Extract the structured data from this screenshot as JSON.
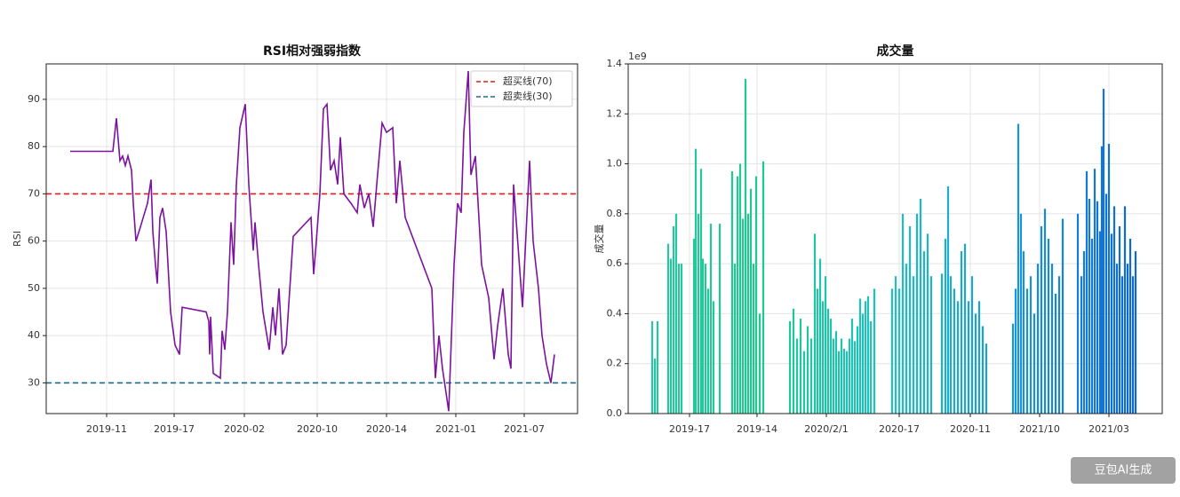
{
  "chart_data": [
    {
      "type": "line",
      "title": "RSI相对强弱指数",
      "ylabel": "RSI",
      "color": "#7b12a0",
      "x": [
        27,
        75,
        79,
        83,
        86,
        89,
        92,
        96,
        98,
        101,
        106,
        114,
        118,
        120,
        123,
        125,
        128,
        131,
        135,
        140,
        145,
        150,
        153,
        180,
        183,
        184,
        185,
        188,
        196,
        198,
        201,
        204,
        208,
        211,
        214,
        218,
        224,
        228,
        233,
        235,
        239,
        244,
        251,
        255,
        258,
        262,
        266,
        270,
        278,
        298,
        301,
        304,
        308,
        312,
        316,
        320,
        324,
        328,
        331,
        335,
        343,
        350,
        353,
        358,
        363,
        368,
        372,
        378,
        383,
        390,
        394,
        398,
        404,
        434,
        438,
        442,
        446,
        453,
        459,
        463,
        467,
        470,
        475,
        478,
        483,
        490,
        498,
        504,
        508,
        514,
        520,
        523,
        526,
        536,
        544,
        548,
        554,
        558,
        563,
        568,
        572
      ],
      "values": [
        79,
        79,
        86,
        77,
        78,
        76,
        78,
        75,
        68,
        60,
        63,
        68,
        73,
        62,
        55,
        51,
        65,
        67,
        62,
        45,
        38,
        36,
        46,
        45,
        43,
        36,
        44,
        32,
        31,
        41,
        37,
        45,
        64,
        55,
        72,
        84,
        89,
        72,
        58,
        64,
        55,
        45,
        37,
        46,
        40,
        50,
        36,
        38,
        61,
        65,
        53,
        60,
        70,
        88,
        89,
        75,
        77,
        72,
        82,
        70,
        68,
        66,
        72,
        67,
        70,
        63,
        72,
        85,
        83,
        84,
        68,
        77,
        65,
        50,
        31,
        40,
        33,
        24,
        55,
        68,
        66,
        83,
        96,
        74,
        78,
        55,
        48,
        35,
        42,
        50,
        36,
        33,
        72,
        46,
        77,
        60,
        50,
        40,
        34,
        30,
        36
      ],
      "xlim": [
        0,
        598
      ],
      "ylim": [
        23.5,
        97.5
      ],
      "xticks": [
        {
          "value": 68,
          "label": "2019-11"
        },
        {
          "value": 144,
          "label": "2019-17"
        },
        {
          "value": 223,
          "label": "2020-02"
        },
        {
          "value": 305,
          "label": "2020-10"
        },
        {
          "value": 383,
          "label": "2020-14"
        },
        {
          "value": 461,
          "label": "2021-01"
        },
        {
          "value": 538,
          "label": "2021-07"
        }
      ],
      "yticks": [
        30,
        40,
        50,
        60,
        70,
        80,
        90
      ],
      "grid": true,
      "legend": "upper right",
      "hlines": [
        {
          "name": "超买线(70)",
          "value": 70,
          "color": "#e01e1e"
        },
        {
          "name": "超卖线(30)",
          "value": 30,
          "color": "#1a6a8a"
        }
      ]
    },
    {
      "type": "bar",
      "title": "成交量",
      "ylabel": "成交量",
      "offset_text": "1e9",
      "cmap": [
        "#2bc4a8",
        "#20c98e",
        "#1ec0c4",
        "#1a8fe0",
        "#0a5ed2"
      ],
      "x": [
        27,
        30,
        33,
        45,
        48,
        51,
        54,
        57,
        60,
        74,
        76,
        79,
        82,
        84,
        87,
        90,
        93,
        96,
        103,
        117,
        120,
        123,
        126,
        129,
        132,
        135,
        138,
        141,
        144,
        148,
        152,
        182,
        186,
        190,
        194,
        198,
        202,
        206,
        210,
        213,
        216,
        219,
        222,
        225,
        228,
        231,
        234,
        237,
        240,
        243,
        246,
        249,
        252,
        255,
        258,
        261,
        264,
        267,
        270,
        273,
        277,
        297,
        301,
        305,
        309,
        313,
        317,
        321,
        325,
        329,
        333,
        337,
        341,
        353,
        357,
        360,
        363,
        367,
        371,
        375,
        379,
        383,
        387,
        391,
        395,
        399,
        403,
        433,
        436,
        439,
        442,
        445,
        449,
        453,
        457,
        461,
        465,
        469,
        473,
        477,
        481,
        485,
        489,
        506,
        510,
        513,
        516,
        519,
        522,
        525,
        528,
        531,
        533,
        535,
        538,
        541,
        544,
        547,
        550,
        553,
        556,
        559,
        562,
        565,
        568,
        571
      ],
      "values": [
        0.37,
        0.22,
        0.37,
        0.68,
        0.62,
        0.75,
        0.8,
        0.6,
        0.6,
        0.7,
        1.06,
        0.8,
        0.98,
        0.62,
        0.6,
        0.5,
        0.76,
        0.45,
        0.76,
        0.97,
        0.6,
        0.95,
        1.0,
        0.78,
        1.34,
        0.8,
        0.9,
        0.6,
        0.95,
        0.4,
        1.01,
        0.37,
        0.42,
        0.3,
        0.38,
        0.25,
        0.35,
        0.3,
        0.72,
        0.5,
        0.62,
        0.45,
        0.55,
        0.42,
        0.38,
        0.3,
        0.33,
        0.25,
        0.3,
        0.26,
        0.25,
        0.3,
        0.38,
        0.29,
        0.35,
        0.46,
        0.4,
        0.45,
        0.47,
        0.37,
        0.5,
        0.5,
        0.55,
        0.5,
        0.8,
        0.6,
        0.75,
        0.55,
        0.8,
        0.86,
        0.65,
        0.72,
        0.55,
        0.56,
        0.7,
        0.91,
        0.55,
        0.5,
        0.45,
        0.65,
        0.68,
        0.45,
        0.55,
        0.4,
        0.45,
        0.35,
        0.28,
        0.36,
        0.5,
        1.16,
        0.8,
        0.65,
        0.5,
        0.55,
        0.4,
        0.6,
        0.75,
        0.82,
        0.7,
        0.6,
        0.48,
        0.55,
        0.78,
        0.8,
        0.55,
        0.65,
        0.97,
        0.86,
        0.7,
        0.98,
        0.85,
        0.73,
        1.07,
        1.3,
        0.88,
        1.08,
        0.72,
        0.83,
        0.6,
        0.75,
        0.55,
        0.83,
        0.6,
        0.7,
        0.55,
        0.65
      ],
      "xlim": [
        0,
        601
      ],
      "ylim": [
        0,
        1.4
      ],
      "xticks": [
        {
          "value": 69,
          "label": "2019-17"
        },
        {
          "value": 145,
          "label": "2019-14"
        },
        {
          "value": 223,
          "label": "2020/2/1"
        },
        {
          "value": 305,
          "label": "2020-17"
        },
        {
          "value": 385,
          "label": "2020-11"
        },
        {
          "value": 463,
          "label": "2021/10"
        },
        {
          "value": 541,
          "label": "2021/03"
        }
      ],
      "yticks": [
        {
          "value": 0,
          "label": "0.0"
        },
        {
          "value": 0.2,
          "label": "0.2"
        },
        {
          "value": 0.4,
          "label": "0.4"
        },
        {
          "value": 0.6,
          "label": "0.6"
        },
        {
          "value": 0.8,
          "label": "0.8"
        },
        {
          "value": 1.0,
          "label": "1.0"
        },
        {
          "value": 1.2,
          "label": "1.2"
        },
        {
          "value": 1.4,
          "label": "1.4"
        }
      ],
      "grid": true
    }
  ],
  "watermark": "豆包AI生成"
}
